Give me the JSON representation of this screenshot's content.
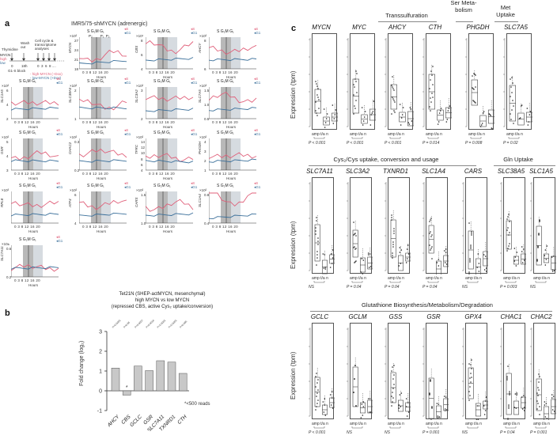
{
  "panel_a": {
    "letter": "a",
    "title": "IMR5/75-shMYCN (adrenergic)",
    "schematic": {
      "thymidine": "Thymidine",
      "wash": "Wash out",
      "analyses": "Cell cycle & transcriptome analyses",
      "mycn": "MYCN",
      "high": "high",
      "low": "low",
      "t0": "0",
      "t18": "18h",
      "ticks": "0  3  6  8 ....",
      "block": "G1-S block",
      "legend_high": "- high-MYCN (–Dox)",
      "legend_low": "- low-MYCN (+Dox)"
    },
    "phases_label": "S  G₂M    G₁",
    "xticks": "0 3   8  12 16 20",
    "xlabel": "Hours",
    "legend_s": "S",
    "legend_g1": "G1",
    "charts": [
      {
        "gene": "MYCN",
        "sci": "×10²",
        "yticks": [
          "27",
          "24",
          "21",
          "18"
        ],
        "annot": "P₂        P₁  P₂"
      },
      {
        "gene": "CBS",
        "sci": "×10¹",
        "yticks": [
          "8",
          "6",
          "4"
        ]
      },
      {
        "gene": "AHCY",
        "sci": "×10²",
        "yticks": [
          "8",
          "6"
        ]
      },
      {
        "gene": "SLC1A5",
        "sci": "×10²",
        "yticks": [
          "6",
          "4",
          "2"
        ]
      },
      {
        "gene": "SLC38A5",
        "sci": "×10²",
        "yticks": [
          "2",
          "1"
        ]
      },
      {
        "gene": "SLC3A2",
        "sci": "×10²",
        "yticks": [
          "3",
          "2"
        ]
      },
      {
        "gene": "SLC7A5",
        "sci": "×10³",
        "yticks": [
          "1.5",
          "1.0",
          "0.5"
        ]
      },
      {
        "gene": "GSR",
        "sci": "×10²",
        "yticks": [
          "5",
          "4",
          "3"
        ]
      },
      {
        "gene": "CHAC2",
        "sci": "×10²",
        "yticks": [
          "0.3",
          "0.2"
        ]
      },
      {
        "gene": "TFRC",
        "sci": "×10²",
        "yticks": [
          "14",
          "12",
          "10",
          "8",
          "6",
          "4"
        ]
      },
      {
        "gene": "PHGDH",
        "sci": "×10²",
        "yticks": [
          "4",
          "3",
          "2",
          "1"
        ]
      },
      {
        "gene": "RPL8",
        "sci": "×10³",
        "yticks": []
      },
      {
        "gene": "ATF4",
        "sci": "×10²",
        "yticks": [
          "6",
          "4"
        ]
      },
      {
        "gene": "CARS",
        "sci": "×10²",
        "yticks": [
          "1.5",
          "1.0"
        ]
      },
      {
        "gene": "SLC1A4",
        "sci": "×10²",
        "yticks": [
          "0.8",
          "0.4"
        ]
      },
      {
        "gene": "SLC7A11",
        "sci": "×10±",
        "yticks": [
          "0.6",
          "0.2"
        ]
      }
    ],
    "colors": {
      "high": "#e0607a",
      "low": "#3a6f9a",
      "shade_dark": "#9a9a9a",
      "shade_light": "#d6dbe0"
    }
  },
  "panel_b": {
    "letter": "b",
    "title_line1": "Tet21N (SHEP-actMYCN, mesenchymal)",
    "title_line2": "high MYCN vs low MYCN",
    "title_line3": "(repressed CBS, active Cys₂ uptake/conversion)",
    "ylabel": "Fold change (log₂)",
    "footnote": "*<500 reads",
    "star": "*"
  },
  "chart_data": {
    "type": "bar",
    "title": "Tet21N (SHEP-actMYCN, mesenchymal) high MYCN vs low MYCN (repressed CBS, active Cys2 uptake/conversion)",
    "categories": [
      "AHCY",
      "CBS",
      "GCLC",
      "GSR",
      "SLC7A11",
      "TXNRD1",
      "CTH"
    ],
    "values": [
      1.15,
      -0.22,
      1.25,
      1.02,
      1.52,
      1.45,
      0.88
    ],
    "pvalues": [
      "P=0.0001",
      "P=0.86",
      "P=0.0007",
      "P=0.0016",
      "P<0.0001",
      "P<0.0001",
      "P=0.086"
    ],
    "xlabel": "",
    "ylabel": "Fold change (log2)",
    "yticks": [
      "3",
      "2",
      "1",
      "0",
      "-1"
    ],
    "ylim": [
      -1,
      3
    ],
    "annotations": [
      "*<500 reads"
    ],
    "grid": false
  },
  "panel_c": {
    "letter": "c",
    "ylabel": "Expression (tpm)",
    "categories": [
      "amp",
      "t/a",
      "n"
    ],
    "groups_row1": [
      {
        "title": "Transsulfuration"
      },
      {
        "title": "Ser Meta-bolism"
      },
      {
        "title": "Met Uptake"
      }
    ],
    "group_row2_a": "Cys₂/Cys uptake, conversion and usage",
    "group_row2_b": "Gln Uptake",
    "group_row3": "Glutathione Biosynthesis/Metabolism/Degradation",
    "row1": [
      {
        "gene": "MYCN",
        "p": "P < 0.001"
      },
      {
        "gene": "MYC",
        "p": "P < 0.001"
      },
      {
        "gene": "AHCY",
        "p": "P < 0.001"
      },
      {
        "gene": "CTH",
        "p": "P = 0.014"
      },
      {
        "gene": "PHGDH",
        "p": "P = 0.008"
      },
      {
        "gene": "SLC7A5",
        "p": "P = 0.02"
      }
    ],
    "row2": [
      {
        "gene": "SLC7A11",
        "p": "NS"
      },
      {
        "gene": "SLC3A2",
        "p": "P = 0.04"
      },
      {
        "gene": "TXNRD1",
        "p": "P = 0.04"
      },
      {
        "gene": "SLC1A4",
        "p": "P = 0.04"
      },
      {
        "gene": "CARS",
        "p": "NS"
      },
      {
        "gene": "SLC38A5",
        "p": "P = 0.003"
      },
      {
        "gene": "SLC1A5",
        "p": "NS"
      }
    ],
    "row3": [
      {
        "gene": "GCLC",
        "p": "P < 0.001"
      },
      {
        "gene": "GCLM",
        "p": "NS"
      },
      {
        "gene": "GSS",
        "p": "NS"
      },
      {
        "gene": "GSR",
        "p": "P = 0.001"
      },
      {
        "gene": "GPX4",
        "p": "NS"
      },
      {
        "gene": "CHAC1",
        "p": "P = 0.04"
      },
      {
        "gene": "CHAC2",
        "p": "P = 0.001"
      }
    ]
  }
}
